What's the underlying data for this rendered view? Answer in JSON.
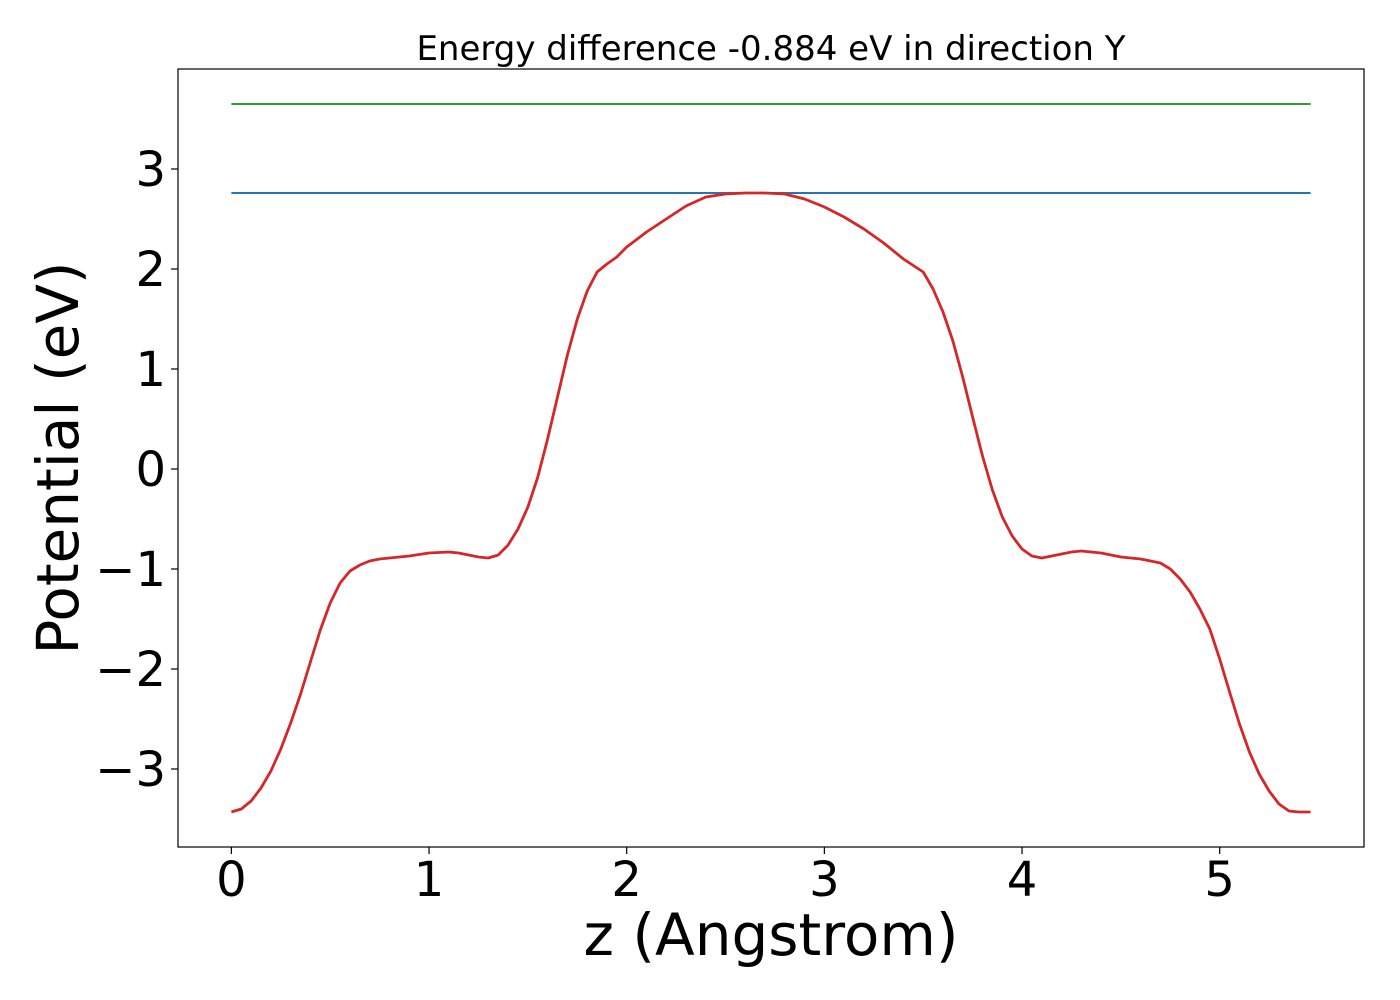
{
  "chart_data": {
    "type": "line",
    "title": "Energy difference -0.884 eV in direction Y",
    "xlabel": "z (Angstrom)",
    "ylabel": "Potential (eV)",
    "xlim": [
      -0.27,
      5.73
    ],
    "ylim": [
      -3.78,
      4.0
    ],
    "xticks": [
      0,
      1,
      2,
      3,
      4,
      5
    ],
    "xtick_labels": [
      "0",
      "1",
      "2",
      "3",
      "4",
      "5"
    ],
    "yticks": [
      -3,
      -2,
      -1,
      0,
      1,
      2,
      3
    ],
    "ytick_labels": [
      "−3",
      "−2",
      "−1",
      "0",
      "1",
      "2",
      "3"
    ],
    "grid": false,
    "legend": "none",
    "series": [
      {
        "color": "#2ca02c",
        "x": [
          0,
          5.46
        ],
        "y": [
          3.65,
          3.65
        ]
      },
      {
        "color": "#1f77b4",
        "x": [
          0,
          5.46
        ],
        "y": [
          2.76,
          2.76
        ]
      },
      {
        "color": "#d62728",
        "x": [
          0,
          0.05,
          0.1,
          0.15,
          0.2,
          0.25,
          0.3,
          0.35,
          0.4,
          0.45,
          0.5,
          0.55,
          0.6,
          0.65,
          0.7,
          0.75,
          0.8,
          0.9,
          1.0,
          1.1,
          1.15,
          1.2,
          1.25,
          1.3,
          1.35,
          1.4,
          1.45,
          1.5,
          1.55,
          1.6,
          1.65,
          1.7,
          1.75,
          1.8,
          1.85,
          1.9,
          1.95,
          2.0,
          2.1,
          2.2,
          2.3,
          2.4,
          2.5,
          2.6,
          2.7,
          2.8,
          2.9,
          3.0,
          3.1,
          3.2,
          3.3,
          3.4,
          3.5,
          3.55,
          3.6,
          3.65,
          3.7,
          3.75,
          3.8,
          3.85,
          3.9,
          3.95,
          4.0,
          4.05,
          4.1,
          4.15,
          4.2,
          4.25,
          4.3,
          4.35,
          4.4,
          4.45,
          4.5,
          4.6,
          4.7,
          4.75,
          4.8,
          4.85,
          4.9,
          4.95,
          5.0,
          5.05,
          5.1,
          5.15,
          5.2,
          5.25,
          5.3,
          5.35,
          5.4,
          5.46
        ],
        "y": [
          -3.43,
          -3.4,
          -3.32,
          -3.19,
          -3.02,
          -2.8,
          -2.54,
          -2.25,
          -1.93,
          -1.61,
          -1.34,
          -1.14,
          -1.02,
          -0.96,
          -0.92,
          -0.9,
          -0.89,
          -0.87,
          -0.84,
          -0.83,
          -0.84,
          -0.86,
          -0.88,
          -0.89,
          -0.86,
          -0.76,
          -0.6,
          -0.38,
          -0.08,
          0.3,
          0.72,
          1.14,
          1.5,
          1.78,
          1.97,
          2.05,
          2.12,
          2.22,
          2.37,
          2.5,
          2.63,
          2.72,
          2.75,
          2.76,
          2.76,
          2.75,
          2.7,
          2.62,
          2.52,
          2.4,
          2.26,
          2.1,
          1.97,
          1.8,
          1.57,
          1.28,
          0.92,
          0.52,
          0.13,
          -0.21,
          -0.48,
          -0.67,
          -0.8,
          -0.87,
          -0.89,
          -0.87,
          -0.85,
          -0.83,
          -0.82,
          -0.83,
          -0.84,
          -0.86,
          -0.88,
          -0.9,
          -0.94,
          -1.0,
          -1.1,
          -1.23,
          -1.4,
          -1.6,
          -1.9,
          -2.23,
          -2.55,
          -2.83,
          -3.05,
          -3.22,
          -3.35,
          -3.42,
          -3.43,
          -3.43
        ]
      }
    ]
  }
}
